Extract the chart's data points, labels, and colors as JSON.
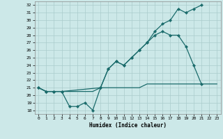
{
  "xlabel": "Humidex (Indice chaleur)",
  "background_color": "#cce8e8",
  "grid_color": "#aacccc",
  "line_color": "#1a6b6b",
  "xlim": [
    -0.5,
    23.5
  ],
  "ylim": [
    17.5,
    32.5
  ],
  "yticks": [
    18,
    19,
    20,
    21,
    22,
    23,
    24,
    25,
    26,
    27,
    28,
    29,
    30,
    31,
    32
  ],
  "xticks": [
    0,
    1,
    2,
    3,
    4,
    5,
    6,
    7,
    8,
    9,
    10,
    11,
    12,
    13,
    14,
    15,
    16,
    17,
    18,
    19,
    20,
    21,
    22,
    23
  ],
  "line1_x": [
    0,
    1,
    2,
    3,
    4,
    5,
    6,
    7,
    8,
    9,
    10,
    11,
    12,
    13,
    14,
    15,
    16,
    17,
    18,
    19,
    20,
    21
  ],
  "line1_y": [
    21.0,
    20.5,
    20.5,
    20.5,
    18.5,
    18.5,
    19.0,
    18.0,
    21.0,
    23.5,
    24.5,
    24.0,
    25.0,
    26.0,
    27.0,
    28.5,
    29.5,
    30.0,
    31.5,
    31.0,
    31.5,
    32.0
  ],
  "line2_x": [
    0,
    1,
    2,
    3,
    8,
    9,
    10,
    11,
    12,
    13,
    14,
    15,
    16,
    17,
    18,
    19,
    20,
    21,
    22
  ],
  "line2_y": [
    21.0,
    20.5,
    20.5,
    20.5,
    21.0,
    23.5,
    24.5,
    24.0,
    25.0,
    26.0,
    27.0,
    28.0,
    28.5,
    28.0,
    28.0,
    26.5,
    24.0,
    21.5,
    null
  ],
  "line2_y_real": [
    21.0,
    20.5,
    20.5,
    20.5,
    21.0,
    23.5,
    24.5,
    24.0,
    25.0,
    26.0,
    27.0,
    28.0,
    28.5,
    28.0,
    28.0,
    26.5,
    24.0,
    21.5
  ],
  "line2_x_real": [
    0,
    1,
    2,
    3,
    8,
    9,
    10,
    11,
    12,
    13,
    14,
    15,
    16,
    17,
    18,
    19,
    20,
    21
  ],
  "line3_x": [
    0,
    1,
    2,
    3,
    4,
    5,
    6,
    7,
    8,
    9,
    10,
    11,
    12,
    13,
    14,
    15,
    16,
    17,
    18,
    19,
    20,
    21,
    22,
    23
  ],
  "line3_y": [
    21.0,
    20.5,
    20.5,
    20.5,
    20.5,
    20.5,
    20.5,
    20.5,
    21.0,
    21.0,
    21.0,
    21.0,
    21.0,
    21.0,
    21.5,
    21.5,
    21.5,
    21.5,
    21.5,
    21.5,
    21.5,
    21.5,
    21.5,
    21.5
  ]
}
